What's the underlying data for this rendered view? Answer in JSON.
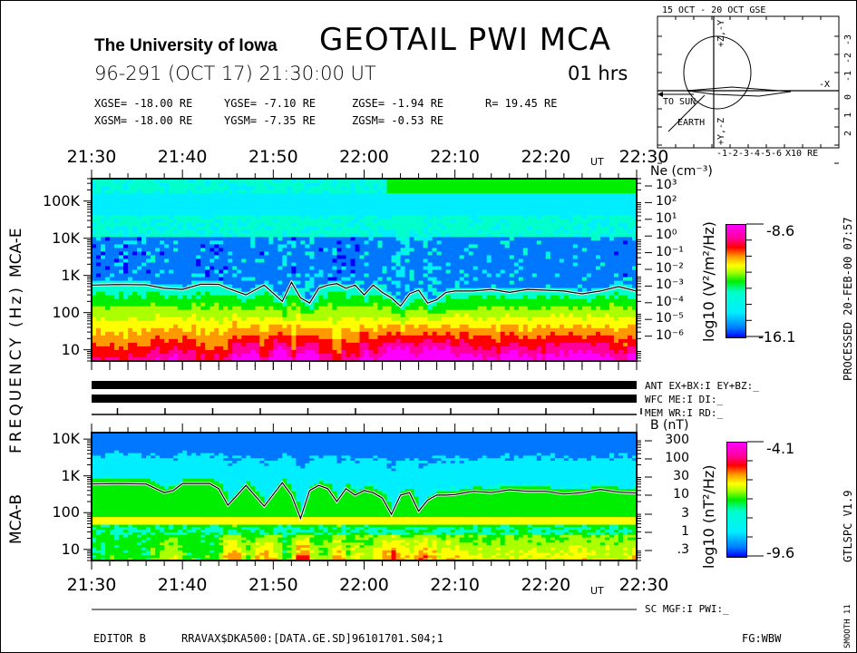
{
  "header": {
    "institution": "The University of Iowa",
    "title": "GEOTAIL  PWI  MCA",
    "date_line": "96-291 (OCT 17) 21:30:00 UT",
    "duration": "01 hrs",
    "coords_gse": [
      "XGSE= -18.00 RE",
      "YGSE=  -7.10 RE",
      "ZGSE=  -1.94 RE",
      "R= 19.45 RE"
    ],
    "coords_gsm": [
      "XGSM= -18.00 RE",
      "YGSM=  -7.35 RE",
      "ZGSM=  -0.53 RE"
    ]
  },
  "orbit": {
    "title": "15 OCT - 20 OCT  GSE",
    "x_ticks": [
      "-1",
      "-2",
      "-3",
      "-4",
      "-5",
      "-6"
    ],
    "x_unit": "X10 RE",
    "y_ticks": [
      "-3",
      "-2",
      "-1",
      "0",
      "1",
      "2"
    ],
    "minus_x_label": "-X",
    "sun_label": "TO SUN",
    "earth_label": "EARTH",
    "axis_top": "+Z,-Y",
    "axis_bottom": "+Y,-Z"
  },
  "time_axis": {
    "ticks": [
      "21:30",
      "21:40",
      "21:50",
      "22:00",
      "22:10",
      "22:20",
      "22:30"
    ],
    "ut_label": "UT"
  },
  "y_axis_label": "FREQUENCY (Hz)",
  "panels": {
    "mca_e": {
      "name": "MCA-E",
      "freq_ticks": [
        "100K",
        "10K",
        "1K",
        "100",
        "10"
      ],
      "density_title": "Ne (cm⁻³)",
      "density_ticks": [
        "10³",
        "10²",
        "10¹",
        "10⁰",
        "10⁻¹",
        "10⁻²",
        "10⁻³",
        "10⁻⁴",
        "10⁻⁵",
        "10⁻⁶"
      ],
      "colorbar_label": "log10 (V²/m²/Hz)",
      "colorbar_max": "-8.6",
      "colorbar_min": "-16.1"
    },
    "mca_b": {
      "name": "MCA-B",
      "freq_ticks": [
        "10K",
        "1K",
        "100",
        "10"
      ],
      "field_title": "B (nT)",
      "field_ticks": [
        "300",
        "100",
        "30",
        "10",
        "3",
        "1",
        ".3"
      ],
      "colorbar_label": "log10 (nT²/Hz)",
      "colorbar_max": "-4.1",
      "colorbar_min": "-9.6"
    }
  },
  "status_rows": {
    "ant": "ANT EX+BX:I  EY+BZ:_",
    "wfc": "WFC ME:I    DI:_",
    "mem": "MEM WR:I    RD:_",
    "sc": "SC MGF:I   PWI:_"
  },
  "footer": {
    "editor": "EDITOR B",
    "file": "RRAVAX$DKA500:[DATA.GE.SD]96101701.S04;1",
    "fg": "FG:WBW"
  },
  "side": {
    "processed": "PROCESSED 20-FEB-00  07:57",
    "version": "GTLSPC   V1.9",
    "smooth": "SMOOTH 11"
  },
  "colors": {
    "colormap": [
      "#0000ff",
      "#0077ff",
      "#00eeff",
      "#00ffcc",
      "#00ee00",
      "#aaff00",
      "#ffff00",
      "#ff9900",
      "#ff0000",
      "#ff0099",
      "#ff00ff"
    ],
    "trace": "#000000",
    "trace_halo": "#ffffff"
  },
  "chart_data": [
    {
      "type": "heatmap",
      "title": "MCA-E",
      "xlabel": "UT",
      "ylabel": "FREQUENCY (Hz)",
      "x_range": [
        "21:30",
        "22:30"
      ],
      "ylim_hz": [
        5,
        400000
      ],
      "yscale": "log",
      "colorbar": {
        "label": "log10 (V2/m2/Hz)",
        "min": -16.1,
        "max": -8.6
      },
      "right_axis": {
        "label": "Ne (cm-3)",
        "ticks": [
          1000,
          100,
          10,
          1,
          0.1,
          0.01,
          0.001,
          0.0001,
          1e-05,
          1e-06
        ]
      },
      "trace_name": "upper hybrid / electron plasma frequency line",
      "trace_time_min": [
        0,
        3,
        6,
        8,
        10,
        12,
        13,
        14,
        15,
        17,
        19,
        21,
        22,
        23,
        24,
        25,
        26,
        27,
        28,
        29,
        30,
        31,
        32,
        33,
        34,
        35,
        36,
        37,
        38,
        39,
        40,
        42,
        44,
        46,
        48,
        50,
        52,
        54,
        56,
        58,
        60
      ],
      "trace_hz": [
        550,
        570,
        560,
        450,
        420,
        580,
        580,
        575,
        450,
        300,
        550,
        200,
        650,
        250,
        180,
        450,
        550,
        600,
        450,
        550,
        300,
        550,
        350,
        250,
        150,
        320,
        400,
        180,
        220,
        350,
        380,
        380,
        420,
        350,
        420,
        400,
        380,
        320,
        380,
        500,
        380
      ]
    },
    {
      "type": "heatmap",
      "title": "MCA-B",
      "xlabel": "UT",
      "ylabel": "FREQUENCY (Hz)",
      "x_range": [
        "21:30",
        "22:30"
      ],
      "ylim_hz": [
        5,
        15000
      ],
      "yscale": "log",
      "colorbar": {
        "label": "log10 (nT2/Hz)",
        "min": -9.6,
        "max": -4.1
      },
      "right_axis": {
        "label": "B (nT)",
        "ticks": [
          300,
          100,
          30,
          10,
          3,
          1,
          0.3
        ]
      },
      "trace_name": "electron cyclotron frequency line",
      "trace_time_min": [
        0,
        3,
        6,
        8,
        9,
        10,
        12,
        13,
        14,
        15,
        17,
        19,
        21,
        22,
        23,
        24,
        25,
        26,
        27,
        28,
        29,
        30,
        31,
        32,
        33,
        34,
        35,
        36,
        37,
        38,
        39,
        40,
        42,
        44,
        46,
        48,
        50,
        52,
        54,
        56,
        58,
        60
      ],
      "trace_hz": [
        600,
        620,
        600,
        350,
        400,
        620,
        620,
        620,
        450,
        160,
        550,
        150,
        650,
        300,
        70,
        400,
        550,
        450,
        200,
        450,
        300,
        400,
        350,
        250,
        90,
        300,
        350,
        110,
        220,
        300,
        300,
        310,
        380,
        350,
        420,
        380,
        380,
        320,
        350,
        430,
        360,
        340
      ]
    }
  ]
}
